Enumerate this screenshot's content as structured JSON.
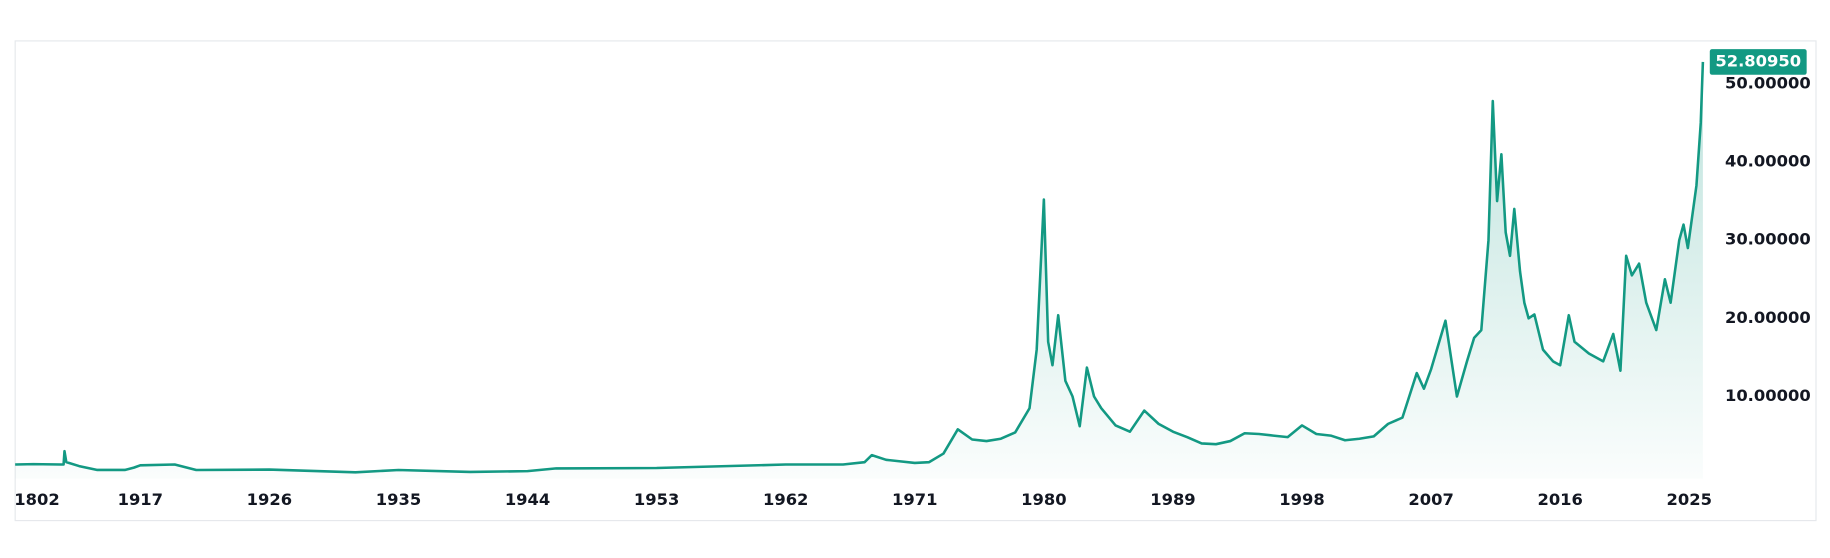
{
  "chart_data": {
    "type": "line",
    "color": "#139983",
    "x": [
      1780,
      1800,
      1830,
      1833,
      1834,
      1836,
      1850,
      1870,
      1900,
      1910,
      1917,
      1919.4,
      1920.9,
      1926,
      1932,
      1935,
      1940,
      1944,
      1946,
      1953,
      1962,
      1966,
      1967.5,
      1968,
      1969,
      1970,
      1971,
      1972,
      1973,
      1974,
      1975,
      1976,
      1977,
      1978,
      1979,
      1979.5,
      1980,
      1980.3,
      1980.6,
      1981,
      1981.5,
      1982,
      1982.5,
      1983,
      1983.5,
      1984,
      1985,
      1986,
      1987,
      1988,
      1989,
      1990,
      1991,
      1992,
      1993,
      1994,
      1995,
      1996,
      1997,
      1998,
      1999,
      2000,
      2001,
      2002,
      2003,
      2004,
      2005,
      2006,
      2006.5,
      2007,
      2008,
      2008.8,
      2009.5,
      2010,
      2010.5,
      2011,
      2011.3,
      2011.6,
      2011.9,
      2012.2,
      2012.5,
      2012.8,
      2013.2,
      2013.5,
      2013.8,
      2014.2,
      2014.8,
      2015.5,
      2016,
      2016.6,
      2017,
      2018,
      2019,
      2019.7,
      2020.2,
      2020.6,
      2021,
      2021.5,
      2022,
      2022.7,
      2023.3,
      2023.7,
      2024.3,
      2024.6,
      2024.9,
      2025.2,
      2025.5,
      2025.8,
      2025.95
    ],
    "values": [
      1.3,
      1.35,
      1.3,
      1.3,
      3.0,
      1.6,
      1.1,
      0.6,
      0.6,
      0.9,
      1.2,
      1.3,
      0.6,
      0.65,
      0.3,
      0.6,
      0.35,
      0.45,
      0.8,
      0.85,
      1.3,
      1.3,
      1.6,
      2.5,
      1.9,
      1.7,
      1.5,
      1.6,
      2.7,
      5.8,
      4.5,
      4.3,
      4.6,
      5.4,
      8.5,
      16,
      35.2,
      17,
      14,
      20.4,
      12,
      10,
      6.2,
      13.7,
      10,
      8.5,
      6.3,
      5.5,
      8.2,
      6.5,
      5.5,
      4.8,
      4.0,
      3.9,
      4.3,
      5.3,
      5.2,
      5.0,
      4.8,
      6.3,
      5.2,
      5.0,
      4.4,
      4.6,
      4.9,
      6.5,
      7.3,
      13,
      11,
      13.5,
      19.7,
      10,
      14.5,
      17.5,
      18.5,
      30,
      47.8,
      35,
      41,
      31,
      28,
      34,
      26,
      22,
      20,
      20.5,
      16,
      14.5,
      14,
      20.4,
      17,
      15.5,
      14.5,
      18,
      13.3,
      28,
      25.5,
      27,
      22,
      18.5,
      25,
      22,
      30,
      32,
      29,
      33,
      37,
      45,
      52.8095
    ],
    "xlim": [
      1780,
      2025.95
    ],
    "xticks": [
      1802,
      1917,
      1926,
      1935,
      1944,
      1953,
      1962,
      1971,
      1980,
      1989,
      1998,
      2007,
      2016,
      2025
    ],
    "ylim": [
      -0.5,
      55.5
    ],
    "yticks": [
      {
        "value": 10,
        "label": "10.00000"
      },
      {
        "value": 20,
        "label": "20.00000"
      },
      {
        "value": 30,
        "label": "30.00000"
      },
      {
        "value": 40,
        "label": "40.00000"
      },
      {
        "value": 50,
        "label": "50.00000"
      }
    ],
    "last_price": {
      "value": 52.8095,
      "label": "52.80950"
    }
  }
}
